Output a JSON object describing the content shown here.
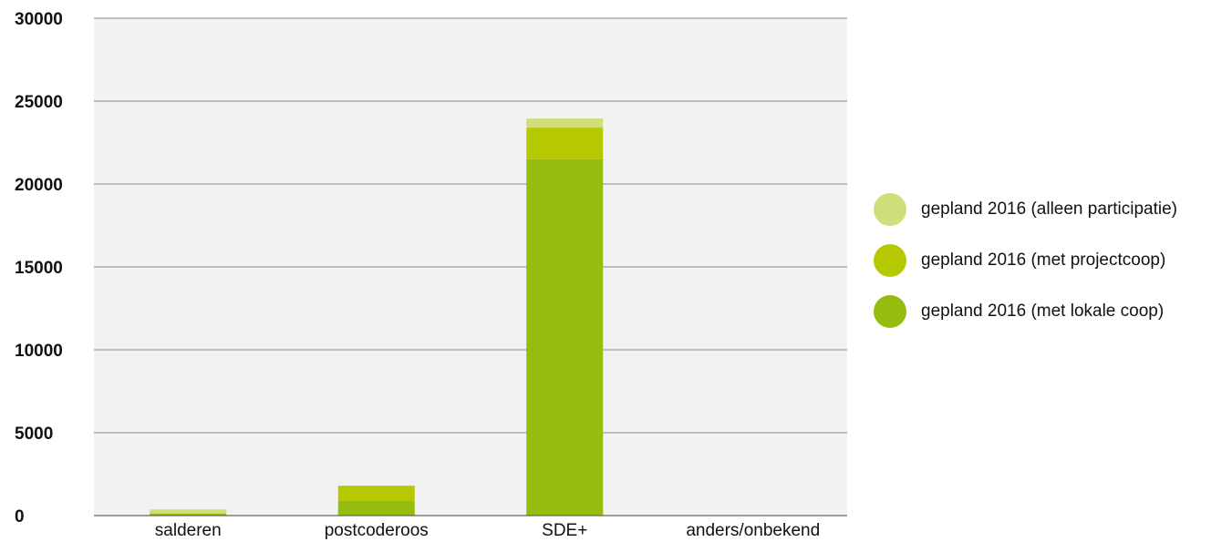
{
  "chart_data": {
    "type": "bar",
    "stacked": true,
    "categories": [
      "salderen",
      "postcoderoos",
      "SDE+",
      "anders/onbekend"
    ],
    "series": [
      {
        "name": "gepland 2016 (met lokale coop)",
        "color": "#94bd10",
        "values": [
          120,
          880,
          21500,
          0
        ]
      },
      {
        "name": "gepland 2016 (met projectcoop)",
        "color": "#b5c800",
        "values": [
          0,
          920,
          1900,
          0
        ]
      },
      {
        "name": "gepland 2016 (alleen participatie)",
        "color": "#cede78",
        "values": [
          250,
          0,
          550,
          0
        ]
      }
    ],
    "ylim": [
      0,
      30000
    ],
    "yticks": [
      "0",
      "5000",
      "10000",
      "15000",
      "20000",
      "25000",
      "30000"
    ],
    "grid": true,
    "legend_position": "right",
    "legend_order": [
      2,
      1,
      0
    ],
    "plot_background": "#f2f2f2",
    "title": "",
    "xlabel": "",
    "ylabel": ""
  }
}
